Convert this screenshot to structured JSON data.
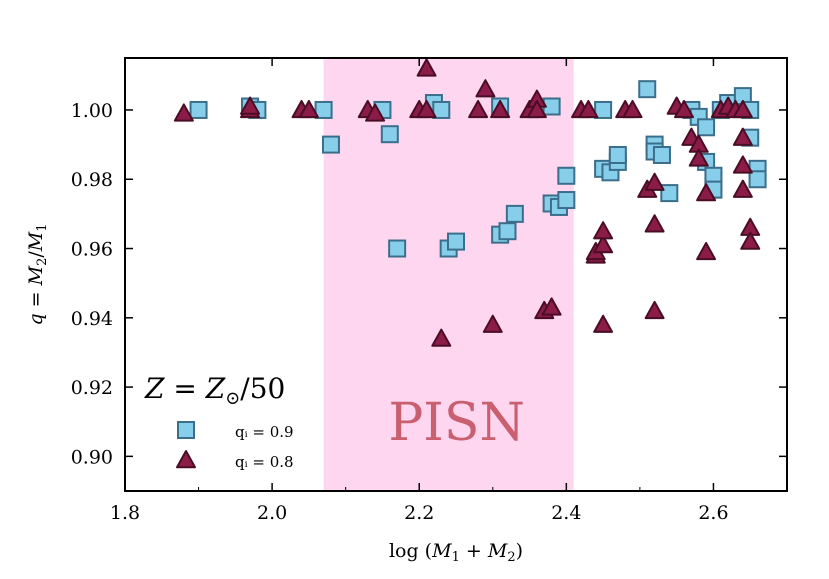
{
  "chart_data": {
    "type": "scatter",
    "title": "",
    "xlabel": "log (M₁ + M₂)",
    "ylabel": "q = M₂/M₁",
    "xlim": [
      1.8,
      2.7
    ],
    "ylim": [
      0.89,
      1.015
    ],
    "xticks": [
      1.8,
      2.0,
      2.2,
      2.4,
      2.6
    ],
    "xtick_labels": [
      "1.8",
      "2.0",
      "2.2",
      "2.4",
      "2.6"
    ],
    "yticks": [
      0.9,
      0.92,
      0.94,
      0.96,
      0.98,
      1.0
    ],
    "ytick_labels": [
      "0.90",
      "0.92",
      "0.94",
      "0.96",
      "0.98",
      "1.00"
    ],
    "grid": false,
    "shaded_region": {
      "x_range": [
        2.07,
        2.41
      ],
      "label": "PISN",
      "color": "#ffd6f0"
    },
    "legend": {
      "title": "Z = Z⊙/50",
      "location": "bottom-left"
    },
    "series": [
      {
        "name": "qᵢ = 0.9",
        "marker": "square",
        "color": "#87ceeb",
        "edge_color": "#3b6e8a",
        "points": [
          [
            1.9,
            1.0
          ],
          [
            1.97,
            1.001
          ],
          [
            1.98,
            1.0
          ],
          [
            2.07,
            1.0
          ],
          [
            2.08,
            0.99
          ],
          [
            2.15,
            1.0
          ],
          [
            2.16,
            0.993
          ],
          [
            2.17,
            0.96
          ],
          [
            2.22,
            1.002
          ],
          [
            2.23,
            1.0
          ],
          [
            2.24,
            0.96
          ],
          [
            2.25,
            0.962
          ],
          [
            2.31,
            1.001
          ],
          [
            2.31,
            0.964
          ],
          [
            2.32,
            0.965
          ],
          [
            2.33,
            0.97
          ],
          [
            2.38,
            1.001
          ],
          [
            2.38,
            0.973
          ],
          [
            2.39,
            0.972
          ],
          [
            2.4,
            0.974
          ],
          [
            2.4,
            0.981
          ],
          [
            2.45,
            1.0
          ],
          [
            2.45,
            0.983
          ],
          [
            2.46,
            0.982
          ],
          [
            2.47,
            0.985
          ],
          [
            2.47,
            0.987
          ],
          [
            2.51,
            1.006
          ],
          [
            2.52,
            0.99
          ],
          [
            2.52,
            0.988
          ],
          [
            2.53,
            0.987
          ],
          [
            2.54,
            0.976
          ],
          [
            2.57,
            1.0
          ],
          [
            2.58,
            0.998
          ],
          [
            2.59,
            0.995
          ],
          [
            2.59,
            0.985
          ],
          [
            2.6,
            0.981
          ],
          [
            2.6,
            0.977
          ],
          [
            2.61,
            1.0
          ],
          [
            2.62,
            1.002
          ],
          [
            2.64,
            1.004
          ],
          [
            2.65,
            1.0
          ],
          [
            2.65,
            0.992
          ],
          [
            2.66,
            0.983
          ],
          [
            2.66,
            0.98
          ]
        ]
      },
      {
        "name": "qᵢ = 0.8",
        "marker": "triangle",
        "color": "#8b1c48",
        "edge_color": "#4a0d25",
        "points": [
          [
            1.88,
            0.999
          ],
          [
            1.97,
            1.0
          ],
          [
            1.97,
            1.001
          ],
          [
            2.04,
            1.0
          ],
          [
            2.05,
            1.0
          ],
          [
            2.13,
            1.0
          ],
          [
            2.14,
            0.999
          ],
          [
            2.2,
            1.0
          ],
          [
            2.21,
            1.0
          ],
          [
            2.21,
            1.012
          ],
          [
            2.23,
            0.934
          ],
          [
            2.28,
            1.0
          ],
          [
            2.29,
            1.006
          ],
          [
            2.3,
            0.938
          ],
          [
            2.31,
            1.0
          ],
          [
            2.35,
            1.0
          ],
          [
            2.36,
            1.003
          ],
          [
            2.36,
            1.0
          ],
          [
            2.37,
            0.942
          ],
          [
            2.38,
            0.943
          ],
          [
            2.42,
            1.0
          ],
          [
            2.43,
            1.0
          ],
          [
            2.44,
            0.958
          ],
          [
            2.44,
            0.959
          ],
          [
            2.45,
            0.961
          ],
          [
            2.45,
            0.965
          ],
          [
            2.45,
            0.938
          ],
          [
            2.48,
            1.0
          ],
          [
            2.49,
            1.0
          ],
          [
            2.51,
            0.977
          ],
          [
            2.52,
            0.979
          ],
          [
            2.52,
            0.967
          ],
          [
            2.52,
            0.942
          ],
          [
            2.55,
            1.001
          ],
          [
            2.56,
            1.0
          ],
          [
            2.57,
            0.992
          ],
          [
            2.58,
            0.99
          ],
          [
            2.58,
            0.986
          ],
          [
            2.59,
            0.976
          ],
          [
            2.59,
            0.959
          ],
          [
            2.61,
            1.0
          ],
          [
            2.62,
            1.001
          ],
          [
            2.63,
            1.0
          ],
          [
            2.64,
            1.0
          ],
          [
            2.64,
            0.992
          ],
          [
            2.64,
            0.984
          ],
          [
            2.64,
            0.977
          ],
          [
            2.65,
            0.966
          ],
          [
            2.65,
            0.962
          ]
        ]
      }
    ]
  }
}
